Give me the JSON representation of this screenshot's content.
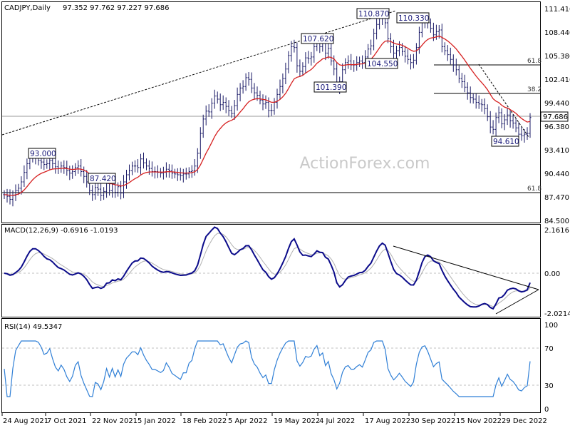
{
  "chart_data": [
    {
      "type": "ohlc",
      "header": {
        "symbol": "CADJPY,Daily",
        "ohlc": "97.352 97.762 97.227 97.686"
      },
      "ylim": [
        84.4,
        112.2
      ],
      "y_ticks": [
        "84.500",
        "87.470",
        "90.440",
        "93.410",
        "96.380",
        "99.440",
        "102.410",
        "105.380",
        "108.440",
        "111.410"
      ],
      "current_price": "97.686",
      "watermark": "ActionForex.com",
      "close_series": [
        88.0,
        87.8,
        87.4,
        87.9,
        88.5,
        88.8,
        89.6,
        90.8,
        91.9,
        92.6,
        92.8,
        92.6,
        92.3,
        92.1,
        91.8,
        91.9,
        92.3,
        91.9,
        91.5,
        91.3,
        91.6,
        91.4,
        91.0,
        90.7,
        90.9,
        91.4,
        91.6,
        90.9,
        90.3,
        89.6,
        88.5,
        88.0,
        88.9,
        88.7,
        87.9,
        88.4,
        89.4,
        88.5,
        89.3,
        88.3,
        89.0,
        88.2,
        89.6,
        90.5,
        91.0,
        91.6,
        91.6,
        91.4,
        92.5,
        92.0,
        91.6,
        91.3,
        90.9,
        90.9,
        90.8,
        90.7,
        90.8,
        91.2,
        91.0,
        90.7,
        90.6,
        90.5,
        90.4,
        90.6,
        90.6,
        90.9,
        91.0,
        91.6,
        93.2,
        95.7,
        97.5,
        98.5,
        98.4,
        99.5,
        100.4,
        100.0,
        99.3,
        99.6,
        99.1,
        98.6,
        98.2,
        99.2,
        100.6,
        101.4,
        101.6,
        102.7,
        102.5,
        101.4,
        100.8,
        100.5,
        99.9,
        99.4,
        99.6,
        98.6,
        98.6,
        99.6,
        100.6,
        101.6,
        102.6,
        103.8,
        105.5,
        106.6,
        106.5,
        104.2,
        103.5,
        104.1,
        105.2,
        105.1,
        105.3,
        106.6,
        107.5,
        106.6,
        107.1,
        105.8,
        106.4,
        104.8,
        103.8,
        101.5,
        102.2,
        103.7,
        104.6,
        104.8,
        104.3,
        104.3,
        104.6,
        104.8,
        104.6,
        105.3,
        106.3,
        106.7,
        108.3,
        109.4,
        110.2,
        110.5,
        109.6,
        107.6,
        106.6,
        105.8,
        106.1,
        106.5,
        106.0,
        105.4,
        105.0,
        104.6,
        104.9,
        106.5,
        108.4,
        109.8,
        110.1,
        109.6,
        108.9,
        108.1,
        108.5,
        108.7,
        106.6,
        106.1,
        105.6,
        105.0,
        104.3,
        103.7,
        102.6,
        102.2,
        101.5,
        100.8,
        100.2,
        100.0,
        99.6,
        99.4,
        99.3,
        98.8,
        97.8,
        96.5,
        96.2,
        97.7,
        98.3,
        96.9,
        97.4,
        98.0,
        97.3,
        97.0,
        96.4,
        95.6,
        95.4,
        95.6,
        95.7,
        97.7
      ]
    },
    {
      "type": "line",
      "header": "MACD(12,26,9) -0.6916 -1.0193",
      "ylim": [
        -2.4,
        2.4
      ],
      "y_ticks": [
        "2.1616",
        "0.00",
        "-2.0214"
      ],
      "current_label": "0.00"
    },
    {
      "type": "line",
      "header": "RSI(14) 49.5347",
      "ylim": [
        0,
        100
      ],
      "y_ticks": [
        "100",
        "70",
        "30",
        "0"
      ]
    }
  ],
  "annotations": {
    "a93000": "93.000",
    "a87420": "87.420",
    "a107620": "107.620",
    "a104550": "104.550",
    "a101390": "101.390",
    "a110870": "110.870",
    "a110330": "110.330",
    "a94610": "94.610",
    "fib_618_upper": "61.8",
    "fib_382": "38.2",
    "fib_618_lower": "61.8"
  },
  "x_axis": [
    "24 Aug 2021",
    "7 Oct 2021",
    "22 Nov 2021",
    "5 Jan 2022",
    "18 Feb 2022",
    "5 Apr 2022",
    "19 May 2022",
    "4 Jul 2022",
    "17 Aug 2022",
    "30 Sep 2022",
    "15 Nov 2022",
    "29 Dec 2022"
  ],
  "colors": {
    "price": "#1a1a66",
    "ema": "#d62020",
    "macd": "#0b0b8a",
    "signal": "#b0b0b0",
    "rsi": "#2f7fd6",
    "grid": "#bfbfbf",
    "watermark": "#c9c9c9"
  }
}
